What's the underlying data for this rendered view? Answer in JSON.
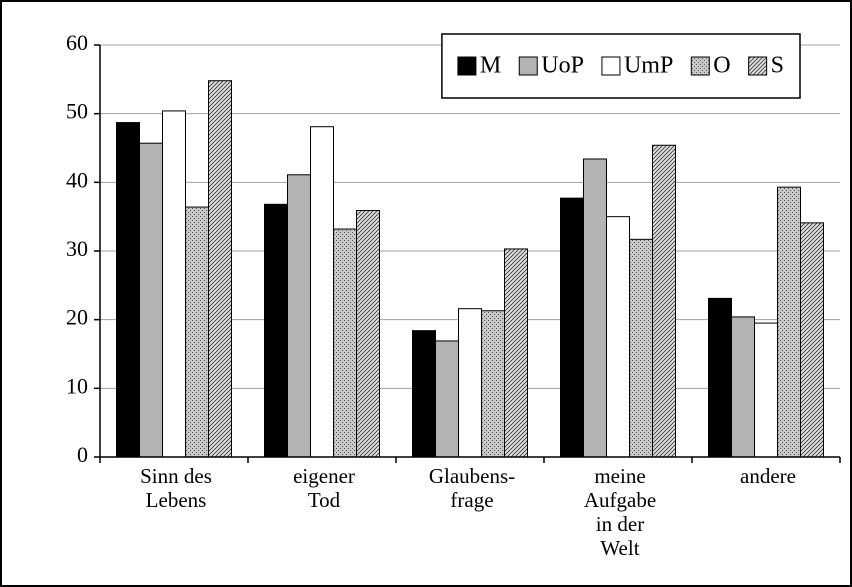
{
  "chart_data": {
    "type": "bar",
    "categories": [
      "Sinn des\nLebens",
      "eigener\nTod",
      "Glaubens-\nfrage",
      "meine\nAufgabe\nin der\nWelt",
      "andere"
    ],
    "series": [
      {
        "name": "M",
        "color": "#000000",
        "values": [
          48.7,
          36.8,
          18.4,
          37.7,
          23.1
        ]
      },
      {
        "name": "UoP",
        "color": "#b3b3b3",
        "values": [
          45.7,
          41.1,
          16.9,
          43.4,
          20.4
        ]
      },
      {
        "name": "UmP",
        "color": "#ffffff",
        "values": [
          50.4,
          48.1,
          21.6,
          35.0,
          19.5
        ]
      },
      {
        "name": "O",
        "color": "#c8c8c8",
        "pattern": "dots",
        "values": [
          36.4,
          33.2,
          21.3,
          31.7,
          39.3
        ]
      },
      {
        "name": "S",
        "color": "#e0e0e0",
        "pattern": "hatch",
        "values": [
          54.8,
          35.9,
          30.3,
          45.4,
          34.1
        ]
      }
    ],
    "ylim": [
      0,
      60
    ],
    "yticks": [
      0,
      10,
      20,
      30,
      40,
      50,
      60
    ],
    "grid": true,
    "legend": "top-right"
  }
}
